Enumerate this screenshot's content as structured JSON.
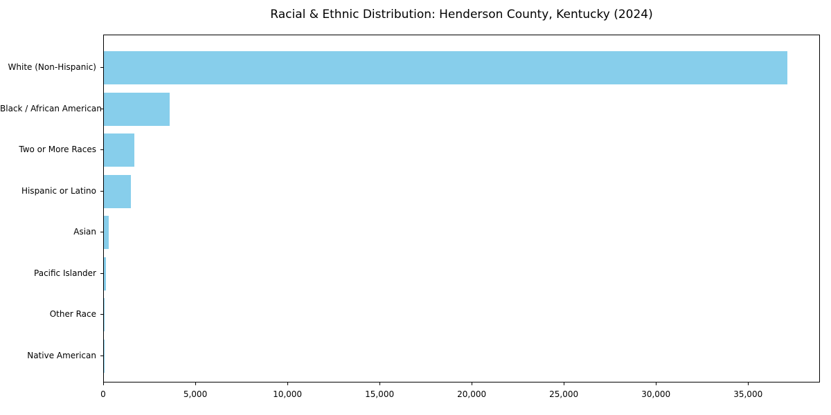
{
  "figure": {
    "background": "#ffffff",
    "axis_color": "#000000",
    "text_color": "#000000"
  },
  "chart_data": {
    "type": "bar",
    "orientation": "horizontal",
    "title": "Racial & Ethnic Distribution: Henderson County, Kentucky (2024)",
    "categories": [
      "White (Non-Hispanic)",
      "Black / African American",
      "Two or More Races",
      "Hispanic or Latino",
      "Asian",
      "Pacific Islander",
      "Other Race",
      "Native American"
    ],
    "values": [
      37100,
      3570,
      1650,
      1460,
      260,
      110,
      40,
      20
    ],
    "bar_color": "#87CEEB",
    "xlabel": "",
    "ylabel": "",
    "xlim": [
      0,
      38900
    ],
    "x_ticks": [
      0,
      5000,
      10000,
      15000,
      20000,
      25000,
      30000,
      35000
    ],
    "x_tick_labels": [
      "0",
      "5,000",
      "10,000",
      "15,000",
      "20,000",
      "25,000",
      "30,000",
      "35,000"
    ],
    "grid": false,
    "legend": null,
    "sort_order": "descending"
  }
}
